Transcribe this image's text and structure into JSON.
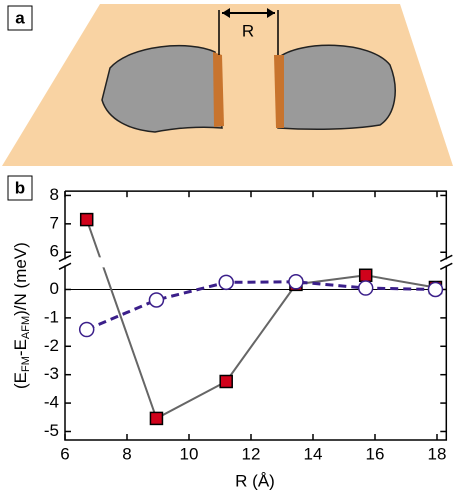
{
  "panels": {
    "a": {
      "label": "a",
      "gap_label": "R"
    }
  },
  "chart_data": {
    "type": "line",
    "panel_label": "b",
    "xlabel": "R (Å)",
    "ylabel": [
      "(E",
      "FM",
      "-E",
      "AFM",
      ")/N (meV)"
    ],
    "x": [
      6.7,
      8.95,
      11.2,
      13.45,
      15.7,
      17.95
    ],
    "series": [
      {
        "color": "#d0021b",
        "line_color": "#666666",
        "marker": "square",
        "dashed": false,
        "values": [
          7.15,
          -4.54,
          -3.24,
          0.18,
          0.5,
          0.07
        ]
      },
      {
        "color": "#3b1f8a",
        "line_color": "#3b1f8a",
        "marker": "circle",
        "dashed": true,
        "values": [
          -1.41,
          -0.37,
          0.25,
          0.27,
          0.05,
          0.0
        ]
      }
    ],
    "xlim": [
      6,
      18.3
    ],
    "xticks": [
      6,
      8,
      10,
      12,
      14,
      16,
      18
    ],
    "ylim": [
      -5.3,
      8.15
    ],
    "y_break": [
      0.85,
      5.75
    ],
    "yticks": [
      -5,
      -4,
      -3,
      -2,
      -1,
      0,
      6,
      7,
      8
    ],
    "zero_line": true
  }
}
